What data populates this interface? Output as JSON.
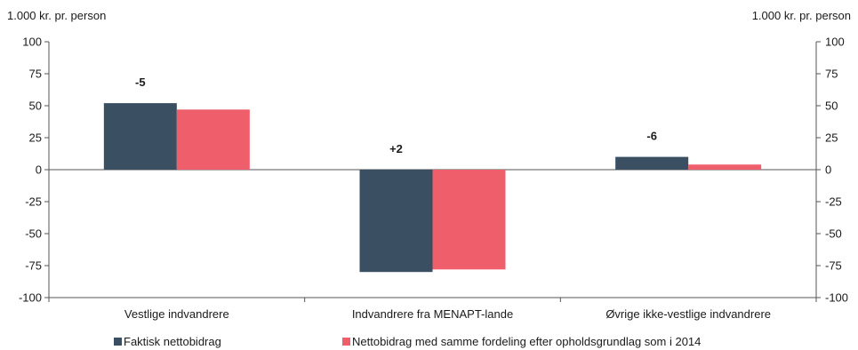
{
  "chart_data": {
    "type": "bar",
    "left_axis_unit": "1.000 kr. pr. person",
    "right_axis_unit": "1.000 kr. pr. person",
    "ylim": [
      -100,
      100
    ],
    "yticks": [
      100,
      75,
      50,
      25,
      0,
      -25,
      -50,
      -75,
      -100
    ],
    "categories": [
      "Vestlige indvandrere",
      "Indvandrere fra MENAPT-lande",
      "Øvrige ikke-vestlige indvandrere"
    ],
    "series": [
      {
        "name": "Faktisk nettobidrag",
        "color": "#3a4f61",
        "values": [
          52,
          -80,
          10
        ]
      },
      {
        "name": "Nettobidrag med samme fordeling efter opholdsgrundlag som i 2014",
        "color": "#ef5f6b",
        "values": [
          47,
          -78,
          4
        ]
      }
    ],
    "annotations": [
      "-5",
      "+2",
      "-6"
    ],
    "grid": false,
    "legend_position": "bottom"
  }
}
